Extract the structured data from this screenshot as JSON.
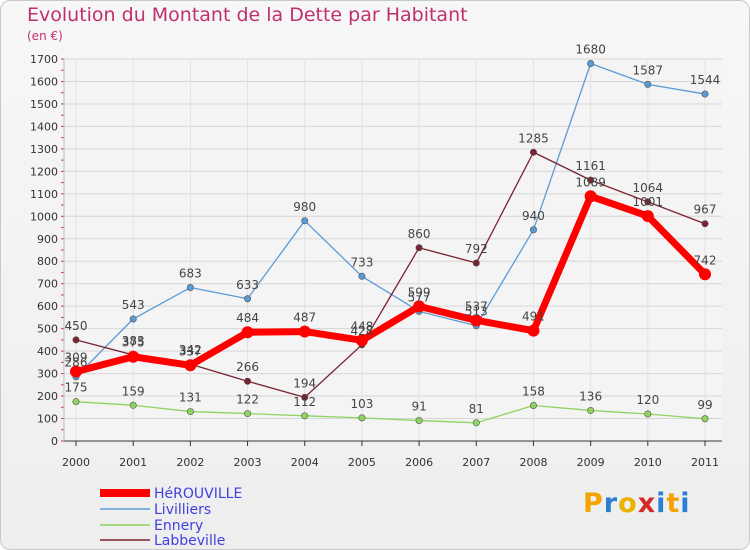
{
  "header": {
    "title": "Evolution du Montant de la Dette par Habitant",
    "subtitle": "(en €)"
  },
  "logo": {
    "text": "Proxiti",
    "colors": [
      "#f5a300",
      "#2a7fd4",
      "#e8b400",
      "#d62828",
      "#2a7fd4",
      "#f5a300",
      "#2a7fd4"
    ]
  },
  "chart_data": {
    "type": "line",
    "x": [
      "2000",
      "2001",
      "2002",
      "2003",
      "2004",
      "2005",
      "2006",
      "2007",
      "2008",
      "2009",
      "2010",
      "2011"
    ],
    "ylim": [
      0,
      1700
    ],
    "yticks": [
      0,
      100,
      200,
      300,
      400,
      500,
      600,
      700,
      800,
      900,
      1000,
      1100,
      1200,
      1300,
      1400,
      1500,
      1600,
      1700
    ],
    "grid": true,
    "legend_position": "bottom-left",
    "series": [
      {
        "name": "HéROUVILLE",
        "color": "#ff0000",
        "values": [
          309,
          375,
          337,
          484,
          487,
          448,
          599,
          537,
          491,
          1089,
          1001,
          742
        ]
      },
      {
        "name": "Livilliers",
        "color": "#5b9bd5",
        "values": [
          286,
          543,
          683,
          633,
          980,
          733,
          577,
          513,
          940,
          1680,
          1587,
          1544
        ]
      },
      {
        "name": "Ennery",
        "color": "#8fd460",
        "values": [
          175,
          159,
          131,
          122,
          112,
          103,
          91,
          81,
          158,
          136,
          120,
          99
        ]
      },
      {
        "name": "Labbeville",
        "color": "#7a2230",
        "values": [
          450,
          383,
          342,
          266,
          194,
          428,
          860,
          792,
          1285,
          1161,
          1064,
          967
        ]
      }
    ]
  }
}
